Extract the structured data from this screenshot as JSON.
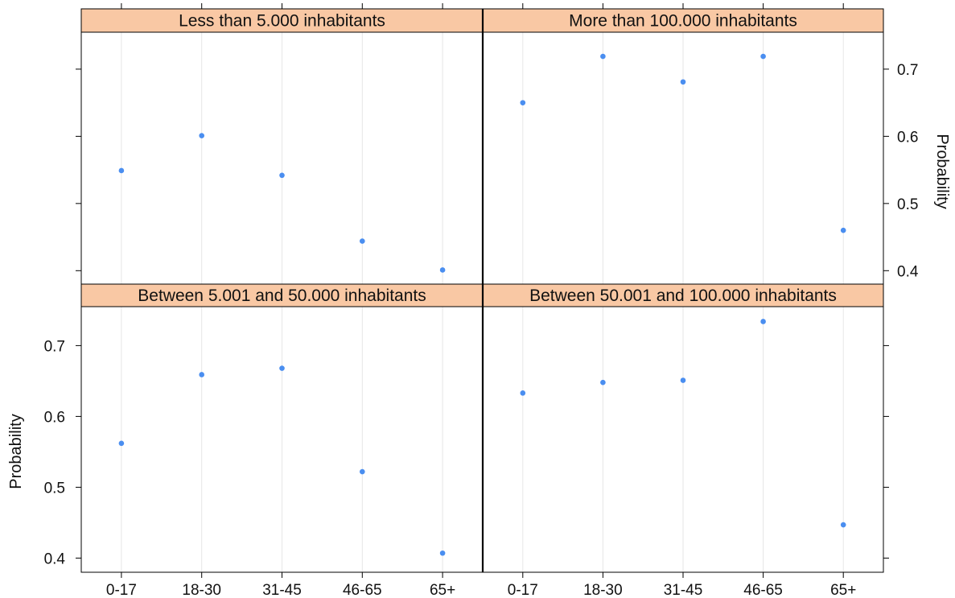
{
  "chart_data": {
    "type": "scatter",
    "ylabel": "Probability",
    "categories": [
      "0-17",
      "18-30",
      "31-45",
      "46-65",
      "65+"
    ],
    "yticks": [
      0.4,
      0.5,
      0.6,
      0.7
    ],
    "ylim": [
      0.38,
      0.755
    ],
    "grid": "vertical",
    "colors": {
      "point": "#4a8ef0",
      "strip": "#f9c8a4",
      "grid": "#e6e6e6",
      "frame": "#000000"
    },
    "panels": [
      {
        "title": "Less than 5.000 inhabitants",
        "values": [
          0.549,
          0.601,
          0.542,
          0.444,
          0.401
        ]
      },
      {
        "title": "More than 100.000 inhabitants",
        "values": [
          0.65,
          0.719,
          0.681,
          0.719,
          0.46
        ]
      },
      {
        "title": "Between 5.001 and 50.000 inhabitants",
        "values": [
          0.562,
          0.659,
          0.668,
          0.522,
          0.407
        ]
      },
      {
        "title": "Between 50.001 and 100.000 inhabitants",
        "values": [
          0.633,
          0.648,
          0.651,
          0.734,
          0.447
        ]
      }
    ]
  }
}
